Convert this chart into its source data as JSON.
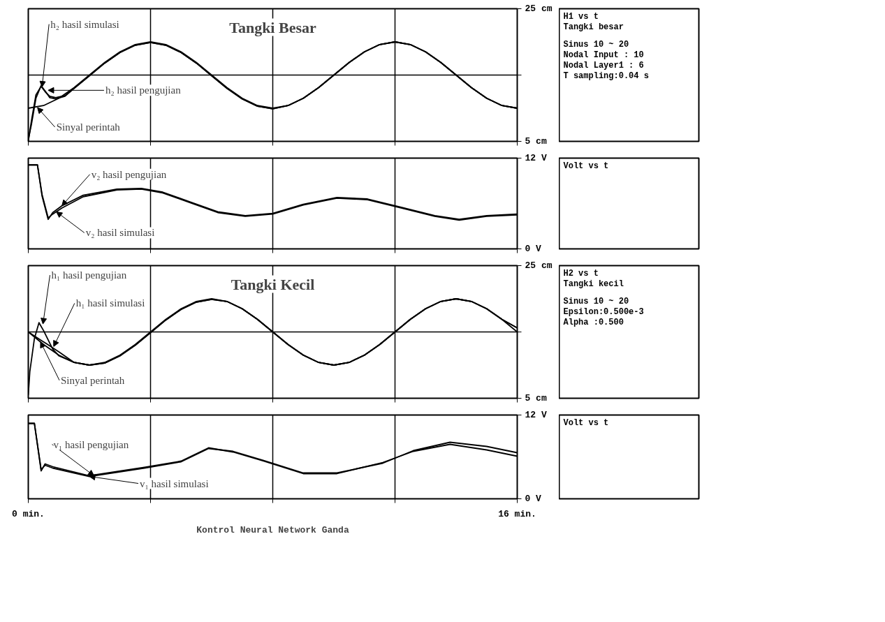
{
  "chart_data": [
    {
      "type": "line",
      "title": "Tangki Besar",
      "xlim": [
        0,
        16
      ],
      "ylim": [
        5,
        25
      ],
      "xticks": [
        {
          "value": 0,
          "label": null
        },
        {
          "value": 4,
          "label": null
        },
        {
          "value": 8,
          "label": null
        },
        {
          "value": 12,
          "label": null
        },
        {
          "value": 16,
          "label": null
        }
      ],
      "yticks": [
        {
          "value": 5,
          "label": "5 cm"
        },
        {
          "value": 15,
          "label": null
        },
        {
          "value": 25,
          "label": "25 cm"
        }
      ],
      "grid": true,
      "tick_labels": "y",
      "series": [
        {
          "color": "#000000",
          "x": [
            0,
            0.5,
            1,
            1.5,
            2,
            2.5,
            3,
            3.5,
            4,
            4.5,
            5,
            5.5,
            6,
            6.5,
            7,
            7.5,
            8,
            8.5,
            9,
            9.5,
            10,
            10.5,
            11,
            11.5,
            12,
            12.5,
            13,
            13.5,
            14,
            14.5,
            15,
            15.5,
            16
          ],
          "values": [
            10,
            10.4,
            11.5,
            13.1,
            15,
            16.9,
            18.5,
            19.6,
            20,
            19.6,
            18.5,
            16.9,
            15,
            13.1,
            11.5,
            10.4,
            10,
            10.4,
            11.5,
            13.1,
            15,
            16.9,
            18.5,
            19.6,
            20,
            19.6,
            18.5,
            16.9,
            15,
            13.1,
            11.5,
            10.4,
            10
          ]
        },
        {
          "color": "#000000",
          "x": [
            0,
            0.1,
            0.25,
            0.42,
            0.55,
            0.7,
            0.9,
            1.2,
            1.5,
            2,
            2.5,
            3,
            3.5,
            4,
            4.5,
            5,
            5.5,
            6,
            6.5,
            7,
            7.5,
            8,
            8.5,
            9,
            9.5,
            10,
            10.5,
            11,
            11.5,
            12,
            12.5,
            13,
            13.5,
            14,
            14.5,
            15,
            15.5,
            16
          ],
          "values": [
            5.3,
            7.5,
            11.5,
            13.4,
            12.6,
            11.6,
            11.4,
            11.8,
            13.0,
            14.9,
            16.8,
            18.4,
            19.5,
            19.9,
            19.5,
            18.4,
            16.8,
            14.9,
            13.0,
            11.4,
            10.3,
            9.9,
            10.4,
            11.5,
            13.1,
            15.0,
            16.9,
            18.5,
            19.6,
            20.0,
            19.6,
            18.5,
            16.9,
            15.0,
            13.1,
            11.5,
            10.4,
            10.0
          ]
        },
        {
          "color": "#000000",
          "x": [
            0,
            0.1,
            0.25,
            0.42,
            0.55,
            0.7,
            0.9,
            1.2,
            1.5,
            2,
            2.5,
            3,
            3.5,
            4,
            4.5,
            5,
            5.5,
            6,
            6.5,
            7,
            7.5,
            8,
            8.5,
            9,
            9.5,
            10,
            10.5,
            11,
            11.5,
            12,
            12.5,
            13,
            13.5,
            14,
            14.5,
            15,
            15.5,
            16
          ],
          "values": [
            5.0,
            8.0,
            12.0,
            13.3,
            12.5,
            11.8,
            11.6,
            11.9,
            13.0,
            14.9,
            16.8,
            18.4,
            19.5,
            19.9,
            19.5,
            18.4,
            16.8,
            14.9,
            13.0,
            11.4,
            10.3,
            9.9,
            10.4,
            11.5,
            13.1,
            15.0,
            16.9,
            18.5,
            19.6,
            20.0,
            19.6,
            18.5,
            16.9,
            15.0,
            13.1,
            11.5,
            10.4,
            10.0
          ]
        }
      ],
      "annotations": [
        {
          "text": "h₂ hasil simulasi",
          "x": 0.45,
          "y": 13.2
        },
        {
          "text": "h₂ hasil pengujian",
          "x": 0.65,
          "y": 12.7
        },
        {
          "text": "Sinyal perintah",
          "x": 0.3,
          "y": 10.1
        },
        "H1 vs t",
        "Tangki besar",
        "Sinus 10 ~ 20",
        "Nodal Input : 10",
        "Nodal Layer1 : 6",
        "T sampling:0.04 s"
      ]
    },
    {
      "type": "line",
      "xlim": [
        0,
        16
      ],
      "ylim": [
        0,
        12
      ],
      "xticks": [
        {
          "value": 0,
          "label": null
        },
        {
          "value": 4,
          "label": null
        },
        {
          "value": 8,
          "label": null
        },
        {
          "value": 12,
          "label": null
        },
        {
          "value": 16,
          "label": null
        }
      ],
      "yticks": [
        {
          "value": 0,
          "label": "0 V"
        },
        {
          "value": 12,
          "label": "12 V"
        }
      ],
      "grid": "x",
      "tick_labels": "y",
      "series": [
        {
          "color": "#000000",
          "x": [
            0,
            0.3,
            0.45,
            0.65,
            0.8,
            1.1,
            1.8,
            2.9,
            3.7,
            4.4,
            5.3,
            6.2,
            7.1,
            8.0,
            9.0,
            10.1,
            11.1,
            12.2,
            13.3,
            14.1,
            15.0,
            16.0
          ],
          "values": [
            11.1,
            11.1,
            7.0,
            3.9,
            4.8,
            5.7,
            7.1,
            7.9,
            8.0,
            7.5,
            6.2,
            4.9,
            4.4,
            4.7,
            5.9,
            6.8,
            6.6,
            5.5,
            4.4,
            3.9,
            4.4,
            4.6
          ]
        },
        {
          "color": "#000000",
          "x": [
            0,
            0.3,
            0.45,
            0.65,
            0.8,
            1.1,
            1.8,
            2.9,
            3.7,
            4.4,
            5.3,
            6.2,
            7.1,
            8.0,
            9.0,
            10.1,
            11.1,
            12.2,
            13.3,
            14.1,
            15.0,
            16.0
          ],
          "values": [
            11.1,
            11.1,
            7.2,
            4.1,
            4.6,
            5.4,
            6.9,
            7.8,
            7.9,
            7.4,
            6.1,
            4.8,
            4.3,
            4.6,
            5.8,
            6.7,
            6.5,
            5.4,
            4.3,
            3.8,
            4.3,
            4.5
          ]
        }
      ],
      "annotations": [
        {
          "text": "v₂ hasil pengujian",
          "x": 1.1,
          "y": 5.7
        },
        {
          "text": "v₂ hasil simulasi",
          "x": 0.92,
          "y": 4.9
        },
        "Volt vs t"
      ]
    },
    {
      "type": "line",
      "title": "Tangki Kecil",
      "xlim": [
        0,
        16
      ],
      "ylim": [
        5,
        25
      ],
      "xticks": [
        {
          "value": 0,
          "label": null
        },
        {
          "value": 4,
          "label": null
        },
        {
          "value": 8,
          "label": null
        },
        {
          "value": 12,
          "label": null
        },
        {
          "value": 16,
          "label": null
        }
      ],
      "yticks": [
        {
          "value": 5,
          "label": "5 cm"
        },
        {
          "value": 15,
          "label": null
        },
        {
          "value": 25,
          "label": "25 cm"
        }
      ],
      "grid": true,
      "tick_labels": "y",
      "series": [
        {
          "color": "#000000",
          "x": [
            0,
            0.5,
            1,
            1.5,
            2,
            2.5,
            3,
            3.5,
            4,
            4.5,
            5,
            5.5,
            6,
            6.5,
            7,
            7.5,
            8,
            8.5,
            9,
            9.5,
            10,
            10.5,
            11,
            11.5,
            12,
            12.5,
            13,
            13.5,
            14,
            14.5,
            15,
            15.5,
            16
          ],
          "values": [
            15,
            13.1,
            11.5,
            10.4,
            10,
            10.4,
            11.5,
            13.1,
            15,
            16.9,
            18.5,
            19.6,
            20,
            19.6,
            18.5,
            16.9,
            15,
            13.1,
            11.5,
            10.4,
            10,
            10.4,
            11.5,
            13.1,
            15,
            16.9,
            18.5,
            19.6,
            20,
            19.6,
            18.5,
            16.9,
            15
          ]
        },
        {
          "color": "#000000",
          "x": [
            0,
            0.05,
            0.2,
            0.35,
            0.5,
            0.8,
            1.0,
            1.5,
            2,
            2.5,
            3,
            3.5,
            4,
            4.5,
            5,
            5.5,
            6,
            6.5,
            7,
            7.5,
            8,
            8.5,
            9,
            9.5,
            10,
            10.5,
            11,
            11.5,
            12,
            12.5,
            13,
            13.5,
            14,
            14.5,
            15,
            15.5,
            16
          ],
          "values": [
            5.5,
            9,
            14,
            16.4,
            15.2,
            12.4,
            11.4,
            10.4,
            10.0,
            10.3,
            11.4,
            13.0,
            14.9,
            16.8,
            18.4,
            19.5,
            19.9,
            19.6,
            18.5,
            16.9,
            15.0,
            13.1,
            11.5,
            10.4,
            10.0,
            10.4,
            11.5,
            13.1,
            15.0,
            16.9,
            18.5,
            19.6,
            20.0,
            19.6,
            18.5,
            16.9,
            15.6
          ]
        },
        {
          "color": "#000000",
          "x": [
            0,
            0.2,
            0.4,
            0.6,
            0.8,
            1.0,
            1.5,
            2,
            2.5,
            3,
            3.5,
            4,
            4.5,
            5,
            5.5,
            6,
            6.5,
            7,
            7.5,
            8,
            8.5,
            9,
            9.5,
            10,
            10.5,
            11,
            11.5,
            12,
            12.5,
            13,
            13.5,
            14,
            14.5,
            15,
            15.5,
            16
          ],
          "values": [
            15.0,
            14.4,
            13.8,
            13.2,
            12.6,
            12.0,
            10.4,
            10.0,
            10.3,
            11.4,
            13.0,
            14.9,
            16.8,
            18.4,
            19.5,
            19.9,
            19.6,
            18.5,
            16.9,
            15.0,
            13.1,
            11.5,
            10.4,
            10.0,
            10.4,
            11.5,
            13.1,
            15.0,
            16.9,
            18.5,
            19.6,
            20.0,
            19.6,
            18.5,
            16.9,
            15.6
          ]
        }
      ],
      "annotations": [
        {
          "text": "h₁ hasil pengujian",
          "x": 0.48,
          "y": 16.2
        },
        {
          "text": "h₁ hasil simulasi",
          "x": 0.83,
          "y": 12.8
        },
        {
          "text": "Sinyal perintah",
          "x": 0.4,
          "y": 13.5
        },
        "H2 vs t",
        "Tangki kecil",
        "Sinus 10 ~ 20",
        "Epsilon:0.500e-3",
        "Alpha :0.500"
      ]
    },
    {
      "type": "line",
      "xlim": [
        0,
        16
      ],
      "ylim": [
        0,
        12
      ],
      "xlabel": "Kontrol Neural Network Ganda",
      "xticks": [
        {
          "value": 0,
          "label": "0 min."
        },
        {
          "value": 4,
          "label": null
        },
        {
          "value": 8,
          "label": null
        },
        {
          "value": 12,
          "label": null
        },
        {
          "value": 16,
          "label": "16 min."
        }
      ],
      "yticks": [
        {
          "value": 0,
          "label": "0 V"
        },
        {
          "value": 12,
          "label": "12 V"
        }
      ],
      "grid": "x",
      "series": [
        {
          "color": "#000000",
          "x": [
            0,
            0.2,
            0.42,
            0.55,
            0.8,
            2.0,
            3.8,
            5.0,
            5.9,
            6.7,
            7.7,
            9.0,
            10.1,
            11.6,
            12.6,
            13.8,
            15.0,
            16.0
          ],
          "values": [
            10.8,
            10.8,
            4.0,
            5.0,
            4.6,
            3.3,
            4.5,
            5.4,
            7.3,
            6.7,
            5.4,
            3.6,
            3.6,
            5.2,
            6.8,
            7.8,
            7.0,
            6.1
          ]
        },
        {
          "color": "#000000",
          "x": [
            0,
            0.2,
            0.42,
            0.55,
            0.8,
            2.0,
            3.8,
            5.0,
            5.9,
            6.7,
            7.7,
            9.0,
            10.1,
            11.6,
            12.6,
            13.8,
            15.0,
            16.0
          ],
          "values": [
            10.8,
            10.8,
            4.2,
            4.8,
            4.4,
            3.2,
            4.4,
            5.3,
            7.2,
            6.8,
            5.5,
            3.7,
            3.7,
            5.1,
            6.9,
            8.1,
            7.5,
            6.6
          ]
        }
      ],
      "annotations": [
        {
          "text": "v₁ hasil pengujian",
          "x": 2.15,
          "y": 3.3
        },
        {
          "text": "v₁ hasil simulasi",
          "x": 2.0,
          "y": 3.2
        },
        "Volt vs t"
      ]
    }
  ]
}
